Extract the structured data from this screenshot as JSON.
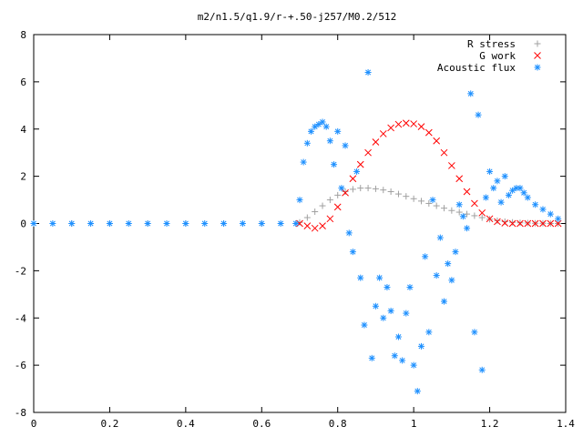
{
  "chart_data": {
    "type": "scatter",
    "title": "m2/n1.5/q1.9/r-+.50-j257/M0.2/512",
    "xlabel": "",
    "ylabel": "",
    "xlim": [
      0,
      1.4
    ],
    "ylim": [
      -8,
      8
    ],
    "x_ticks": [
      0,
      0.2,
      0.4,
      0.6,
      0.8,
      1,
      1.2,
      1.4
    ],
    "x_tick_labels": [
      "0",
      "0.2",
      "0.4",
      "0.6",
      "0.8",
      "1",
      "1.2",
      "1.4"
    ],
    "y_ticks": [
      -8,
      -6,
      -4,
      -2,
      0,
      2,
      4,
      6,
      8
    ],
    "y_tick_labels": [
      "-8",
      "-6",
      "-4",
      "-2",
      "0",
      "2",
      "4",
      "6",
      "8"
    ],
    "grid": false,
    "legend_position": "top-right",
    "series": [
      {
        "name": "R stress",
        "marker": "plus",
        "color": "#a0a0a0",
        "x": [
          0,
          0.1,
          0.2,
          0.3,
          0.4,
          0.5,
          0.6,
          0.69,
          0.7,
          0.72,
          0.74,
          0.76,
          0.78,
          0.8,
          0.82,
          0.84,
          0.86,
          0.88,
          0.9,
          0.92,
          0.94,
          0.96,
          0.98,
          1.0,
          1.02,
          1.04,
          1.06,
          1.08,
          1.1,
          1.12,
          1.14,
          1.16,
          1.18,
          1.2,
          1.22,
          1.24,
          1.26,
          1.28,
          1.3,
          1.32,
          1.34,
          1.36,
          1.38
        ],
        "y": [
          0,
          0,
          0,
          0,
          0,
          0,
          0,
          0,
          0.05,
          0.25,
          0.5,
          0.75,
          1.0,
          1.2,
          1.35,
          1.45,
          1.5,
          1.5,
          1.47,
          1.42,
          1.35,
          1.25,
          1.15,
          1.05,
          0.95,
          0.85,
          0.75,
          0.65,
          0.55,
          0.48,
          0.4,
          0.33,
          0.25,
          0.18,
          0.12,
          0.08,
          0.05,
          0.03,
          0.02,
          0.01,
          0.01,
          0.0,
          0.0
        ]
      },
      {
        "name": "G work",
        "marker": "cross",
        "color": "#ff0000",
        "x": [
          0.7,
          0.72,
          0.74,
          0.76,
          0.78,
          0.8,
          0.82,
          0.84,
          0.86,
          0.88,
          0.9,
          0.92,
          0.94,
          0.96,
          0.98,
          1.0,
          1.02,
          1.04,
          1.06,
          1.08,
          1.1,
          1.12,
          1.14,
          1.16,
          1.18,
          1.2,
          1.22,
          1.24,
          1.26,
          1.28,
          1.3,
          1.32,
          1.34,
          1.36,
          1.38
        ],
        "y": [
          0.0,
          -0.1,
          -0.2,
          -0.1,
          0.2,
          0.7,
          1.3,
          1.9,
          2.5,
          3.0,
          3.45,
          3.8,
          4.05,
          4.2,
          4.25,
          4.22,
          4.1,
          3.85,
          3.5,
          3.0,
          2.45,
          1.9,
          1.35,
          0.85,
          0.45,
          0.2,
          0.08,
          0.02,
          0.0,
          0.0,
          0.0,
          0.0,
          0.0,
          0.0,
          0.0
        ]
      },
      {
        "name": "Acoustic flux",
        "marker": "star",
        "color": "#1e90ff",
        "x": [
          0,
          0.05,
          0.1,
          0.15,
          0.2,
          0.25,
          0.3,
          0.35,
          0.4,
          0.45,
          0.5,
          0.55,
          0.6,
          0.65,
          0.69,
          0.7,
          0.71,
          0.72,
          0.73,
          0.74,
          0.75,
          0.76,
          0.77,
          0.78,
          0.79,
          0.8,
          0.81,
          0.82,
          0.83,
          0.84,
          0.85,
          0.86,
          0.87,
          0.88,
          0.89,
          0.9,
          0.91,
          0.92,
          0.93,
          0.94,
          0.95,
          0.96,
          0.97,
          0.98,
          0.99,
          1.0,
          1.01,
          1.02,
          1.03,
          1.04,
          1.05,
          1.06,
          1.07,
          1.08,
          1.09,
          1.1,
          1.11,
          1.12,
          1.13,
          1.14,
          1.15,
          1.16,
          1.17,
          1.18,
          1.19,
          1.2,
          1.21,
          1.22,
          1.23,
          1.24,
          1.25,
          1.26,
          1.27,
          1.28,
          1.29,
          1.3,
          1.32,
          1.34,
          1.36,
          1.38
        ],
        "y": [
          0,
          0,
          0,
          0,
          0,
          0,
          0,
          0,
          0,
          0,
          0,
          0,
          0,
          0,
          0,
          1.0,
          2.6,
          3.4,
          3.9,
          4.1,
          4.2,
          4.3,
          4.1,
          3.5,
          2.5,
          3.9,
          1.5,
          3.3,
          -0.4,
          -1.2,
          2.2,
          -2.3,
          -4.3,
          6.4,
          -5.7,
          -3.5,
          -2.3,
          -4.0,
          -2.7,
          -3.7,
          -5.6,
          -4.8,
          -5.8,
          -3.8,
          -2.7,
          -6.0,
          -7.1,
          -5.2,
          -1.4,
          -4.6,
          1.0,
          -2.2,
          -0.6,
          -3.3,
          -1.7,
          -2.4,
          -1.2,
          0.8,
          0.3,
          -0.2,
          5.5,
          -4.6,
          4.6,
          -6.2,
          1.1,
          2.2,
          1.5,
          1.8,
          0.9,
          2.0,
          1.2,
          1.4,
          1.5,
          1.5,
          1.3,
          1.1,
          0.8,
          0.6,
          0.4,
          0.2
        ]
      }
    ]
  }
}
